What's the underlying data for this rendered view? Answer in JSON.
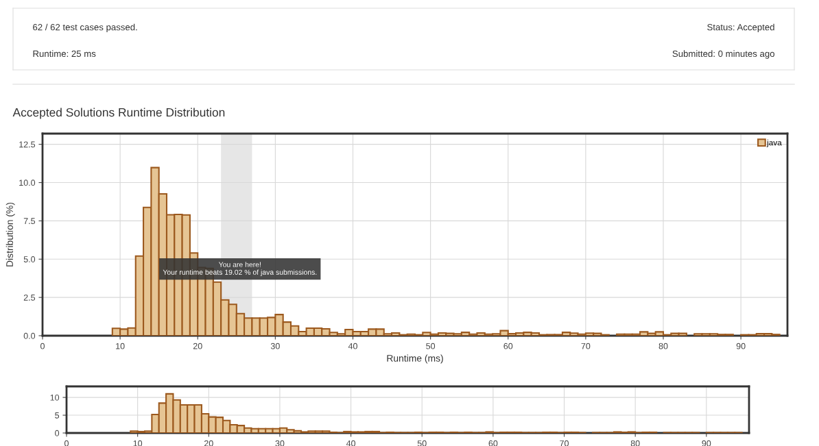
{
  "chart_data": [
    {
      "type": "other",
      "annotations": [
        "62 / 62 test cases passed.",
        "Runtime: 25 ms",
        "Status: Accepted",
        "Submitted: 0 minutes ago"
      ]
    },
    {
      "type": "histogram",
      "title": "Accepted Solutions Runtime Distribution",
      "xlabel": "Runtime (ms)",
      "ylabel": "Distribution (%)",
      "bins": [
        9,
        10,
        11,
        12,
        13,
        14,
        15,
        16,
        17,
        18,
        19,
        20,
        21,
        22,
        23,
        24,
        25,
        26,
        27,
        28,
        29,
        30,
        31,
        32,
        33,
        34,
        35,
        36,
        37,
        38,
        39,
        40,
        41,
        42,
        43,
        44,
        45,
        46,
        47,
        48,
        49,
        50,
        51,
        52,
        53,
        54,
        55,
        56,
        57,
        58,
        59,
        60,
        61,
        62,
        63,
        64,
        65,
        66,
        67,
        68,
        69,
        70,
        71,
        72,
        73,
        74,
        75,
        76,
        77,
        78,
        79,
        80,
        81,
        82,
        83,
        84,
        85,
        86,
        87,
        88,
        89,
        90,
        91,
        92,
        93,
        94,
        95
      ],
      "series": [
        {
          "name": "java",
          "color": "#e6c594",
          "values": [
            0.48,
            0.43,
            0.5,
            5.2,
            8.38,
            10.98,
            9.26,
            7.9,
            7.92,
            7.89,
            5.4,
            4.45,
            4.4,
            3.5,
            2.34,
            2.05,
            1.44,
            1.15,
            1.15,
            1.15,
            1.19,
            1.38,
            0.89,
            0.64,
            0.27,
            0.49,
            0.49,
            0.45,
            0.21,
            0.12,
            0.4,
            0.27,
            0.27,
            0.43,
            0.43,
            0.12,
            0.18,
            0.06,
            0.1,
            0.06,
            0.21,
            0.1,
            0.18,
            0.15,
            0.12,
            0.22,
            0.1,
            0.18,
            0.1,
            0.12,
            0.33,
            0.13,
            0.18,
            0.22,
            0.18,
            0.06,
            0.07,
            0.07,
            0.22,
            0.17,
            0.1,
            0.17,
            0.15,
            0.06,
            null,
            0.1,
            0.1,
            0.1,
            0.25,
            0.15,
            0.25,
            0.06,
            0.15,
            0.15,
            null,
            0.12,
            0.12,
            0.12,
            0.08,
            0.08,
            null,
            0.06,
            0.06,
            0.13,
            0.13,
            0.08
          ]
        }
      ],
      "xlim": [
        0,
        96
      ],
      "xticks": [
        0,
        10,
        20,
        30,
        40,
        50,
        60,
        70,
        80,
        90
      ],
      "ylim": [
        0,
        13.2
      ],
      "yticks": [
        {
          "value": 0,
          "label": "0.0"
        },
        {
          "value": 2.5,
          "label": "2.5"
        },
        {
          "value": 5,
          "label": "5.0"
        },
        {
          "value": 7.5,
          "label": "7.5"
        },
        {
          "value": 10,
          "label": "10.0"
        },
        {
          "value": 12.5,
          "label": "12.5"
        }
      ],
      "bands": [
        {
          "axis": "x",
          "from": 23,
          "to": 27,
          "color": "#e6e6e6"
        }
      ],
      "annotations": [
        "You are here!\nYour runtime beats 19.02 % of java submissions."
      ],
      "grid": true,
      "legend": "top right"
    },
    {
      "type": "histogram",
      "bins": [
        9,
        10,
        11,
        12,
        13,
        14,
        15,
        16,
        17,
        18,
        19,
        20,
        21,
        22,
        23,
        24,
        25,
        26,
        27,
        28,
        29,
        30,
        31,
        32,
        33,
        34,
        35,
        36,
        37,
        38,
        39,
        40,
        41,
        42,
        43,
        44,
        45,
        46,
        47,
        48,
        49,
        50,
        51,
        52,
        53,
        54,
        55,
        56,
        57,
        58,
        59,
        60,
        61,
        62,
        63,
        64,
        65,
        66,
        67,
        68,
        69,
        70,
        71,
        72,
        73,
        74,
        75,
        76,
        77,
        78,
        79,
        80,
        81,
        82,
        83,
        84,
        85,
        86,
        87,
        88,
        89,
        90,
        91,
        92,
        93,
        94,
        95
      ],
      "series": [
        {
          "color": "#e6c594",
          "values": [
            0.5,
            0.4,
            0.5,
            5.2,
            8.4,
            11,
            9.3,
            7.9,
            7.9,
            7.9,
            5.4,
            4.5,
            4.4,
            3.5,
            2.3,
            2.1,
            1.4,
            1.2,
            1.2,
            1.2,
            1.2,
            1.4,
            0.9,
            0.6,
            0.3,
            0.5,
            0.5,
            0.5,
            0.2,
            0.1,
            0.4,
            0.3,
            0.3,
            0.4,
            0.4,
            0.1,
            0.2,
            0.1,
            0.1,
            0.1,
            0.2,
            0.1,
            0.2,
            0.2,
            0.1,
            0.2,
            0.1,
            0.2,
            0.1,
            0.1,
            0.3,
            0.1,
            0.2,
            0.2,
            0.2,
            0.1,
            0.1,
            0.1,
            0.2,
            0.2,
            0.1,
            0.2,
            0.2,
            0.1,
            null,
            0.1,
            0.1,
            0.1,
            0.3,
            0.2,
            0.3,
            0.1,
            0.2,
            0.2,
            null,
            0.1,
            0.1,
            0.1,
            0.1,
            0.1,
            null,
            0.1,
            0.1,
            0.1,
            0.1,
            0.1
          ]
        }
      ],
      "xlim": [
        0,
        96
      ],
      "xticks": [
        0,
        10,
        20,
        30,
        40,
        50,
        60,
        70,
        80,
        90
      ],
      "ylim": [
        0,
        13.1
      ],
      "yticks": [
        0,
        5,
        10
      ],
      "grid": true
    }
  ]
}
